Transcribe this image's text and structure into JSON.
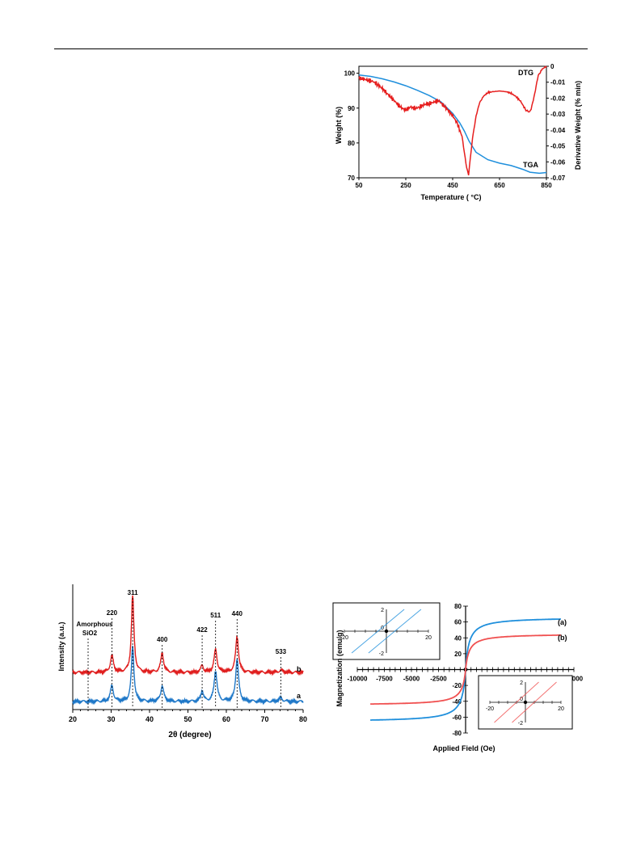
{
  "chart_data": [
    {
      "type": "line",
      "xlabel": "Temperature ( °C)",
      "ylabel": "Weight (%)",
      "ylabel_right": "Derivative Weight (% min)",
      "xlim": [
        50,
        850
      ],
      "ylim": [
        70,
        102
      ],
      "ylim_right": [
        -0.07,
        0
      ],
      "x_ticks": [
        50,
        250,
        450,
        650,
        850
      ],
      "y_ticks": [
        70,
        80,
        90,
        100
      ],
      "y_ticks_right": [
        0,
        -0.01,
        -0.02,
        -0.03,
        -0.04,
        -0.05,
        -0.06,
        -0.07
      ],
      "grid": false,
      "series": [
        {
          "name": "TGA",
          "axis": "left",
          "color": "#1f8fdc",
          "points": [
            [
              50,
              99.5
            ],
            [
              100,
              99.1
            ],
            [
              150,
              98.4
            ],
            [
              200,
              97.5
            ],
            [
              250,
              96.4
            ],
            [
              300,
              95.1
            ],
            [
              350,
              93.6
            ],
            [
              400,
              91.8
            ],
            [
              450,
              88.5
            ],
            [
              480,
              85.8
            ],
            [
              500,
              83.4
            ],
            [
              520,
              80.5
            ],
            [
              550,
              77.3
            ],
            [
              600,
              75.2
            ],
            [
              650,
              74.2
            ],
            [
              700,
              73.5
            ],
            [
              750,
              72.4
            ],
            [
              780,
              71.6
            ],
            [
              820,
              71.3
            ],
            [
              850,
              71.5
            ]
          ]
        },
        {
          "name": "DTG",
          "axis": "right",
          "color": "#e61e1e",
          "points": [
            [
              50,
              -0.0075
            ],
            [
              70,
              -0.008
            ],
            [
              90,
              -0.0088
            ],
            [
              110,
              -0.0095
            ],
            [
              130,
              -0.0115
            ],
            [
              150,
              -0.014
            ],
            [
              170,
              -0.017
            ],
            [
              190,
              -0.02
            ],
            [
              210,
              -0.023
            ],
            [
              230,
              -0.026
            ],
            [
              250,
              -0.0275
            ],
            [
              270,
              -0.0255
            ],
            [
              290,
              -0.0265
            ],
            [
              310,
              -0.0255
            ],
            [
              330,
              -0.024
            ],
            [
              350,
              -0.0235
            ],
            [
              370,
              -0.0225
            ],
            [
              390,
              -0.0215
            ],
            [
              410,
              -0.0245
            ],
            [
              430,
              -0.0275
            ],
            [
              450,
              -0.031
            ],
            [
              470,
              -0.036
            ],
            [
              490,
              -0.044
            ],
            [
              500,
              -0.054
            ],
            [
              510,
              -0.064
            ],
            [
              518,
              -0.068
            ],
            [
              525,
              -0.058
            ],
            [
              535,
              -0.045
            ],
            [
              550,
              -0.031
            ],
            [
              565,
              -0.023
            ],
            [
              580,
              -0.019
            ],
            [
              600,
              -0.0165
            ],
            [
              620,
              -0.016
            ],
            [
              650,
              -0.0155
            ],
            [
              680,
              -0.016
            ],
            [
              700,
              -0.017
            ],
            [
              720,
              -0.019
            ],
            [
              740,
              -0.022
            ],
            [
              760,
              -0.027
            ],
            [
              775,
              -0.029
            ],
            [
              785,
              -0.027
            ],
            [
              800,
              -0.017
            ],
            [
              815,
              -0.006
            ],
            [
              830,
              -0.002
            ],
            [
              850,
              0.0
            ]
          ]
        }
      ],
      "annotations": [
        "DTG",
        "TGA"
      ]
    },
    {
      "type": "line",
      "xlabel": "2θ (degree)",
      "ylabel": "Intensity (a.u.)",
      "xlim": [
        20,
        80
      ],
      "x_ticks": [
        20,
        30,
        40,
        50,
        60,
        70,
        80
      ],
      "grid": false,
      "peaks": [
        {
          "pos": 30.2,
          "h_b": 0.22,
          "h_a": 0.18,
          "w": 0.9
        },
        {
          "pos": 35.6,
          "h_b": 1.0,
          "h_a": 0.62,
          "w": 0.8
        },
        {
          "pos": 43.3,
          "h_b": 0.25,
          "h_a": 0.18,
          "w": 0.9
        },
        {
          "pos": 53.7,
          "h_b": 0.09,
          "h_a": 0.12,
          "w": 0.8
        },
        {
          "pos": 57.2,
          "h_b": 0.3,
          "h_a": 0.35,
          "w": 0.9
        },
        {
          "pos": 62.8,
          "h_b": 0.47,
          "h_a": 0.48,
          "w": 0.9
        },
        {
          "pos": 74.2,
          "h_b": 0.03,
          "h_a": 0.04,
          "w": 1.0
        }
      ],
      "series": [
        {
          "name": "a",
          "color": "#1f78c8",
          "offset": 0
        },
        {
          "name": "b",
          "color": "#e01e1e",
          "offset": 1
        }
      ],
      "peak_labels": [
        {
          "label": "311",
          "x": 35.6
        },
        {
          "label": "220",
          "x": 30.2
        },
        {
          "label": "400",
          "x": 43.3
        },
        {
          "label": "422",
          "x": 53.7
        },
        {
          "label": "511",
          "x": 57.2
        },
        {
          "label": "440",
          "x": 62.8
        },
        {
          "label": "533",
          "x": 74.2
        }
      ],
      "amorphous_label": {
        "line1": "Amorphous",
        "line2": "SiO2",
        "x": 24.0
      }
    },
    {
      "type": "line",
      "xlabel": "Applied Field (Oe)",
      "ylabel": "Magnetization (emu/g)",
      "xlim": [
        -10000,
        10000
      ],
      "ylim": [
        -80,
        80
      ],
      "x_ticks": [
        -10000,
        -7500,
        -5000,
        -2500,
        0,
        2500,
        5000,
        7500,
        10000
      ],
      "y_ticks": [
        -80,
        -60,
        -40,
        -20,
        0,
        20,
        40,
        60,
        80
      ],
      "grid": false,
      "series": [
        {
          "name": "(a)",
          "color": "#1f8fdc",
          "ms": 66,
          "h0": 320,
          "hmax": 8800
        },
        {
          "name": "(b)",
          "color": "#f05050",
          "ms": 45,
          "h0": 320,
          "hmax": 8800
        }
      ],
      "insets": [
        {
          "series": "(a)",
          "xlim": [
            -20,
            20
          ],
          "ylim": [
            -2,
            2
          ],
          "x_ticks": [
            -20,
            0,
            20
          ],
          "y_ticks": [
            2,
            0,
            -2
          ],
          "coercivity": 4
        },
        {
          "series": "(b)",
          "xlim": [
            -20,
            20
          ],
          "ylim": [
            -2,
            2
          ],
          "x_ticks": [
            -20,
            0,
            20
          ],
          "y_ticks": [
            2,
            0,
            -2
          ],
          "coercivity": 5
        }
      ]
    }
  ]
}
